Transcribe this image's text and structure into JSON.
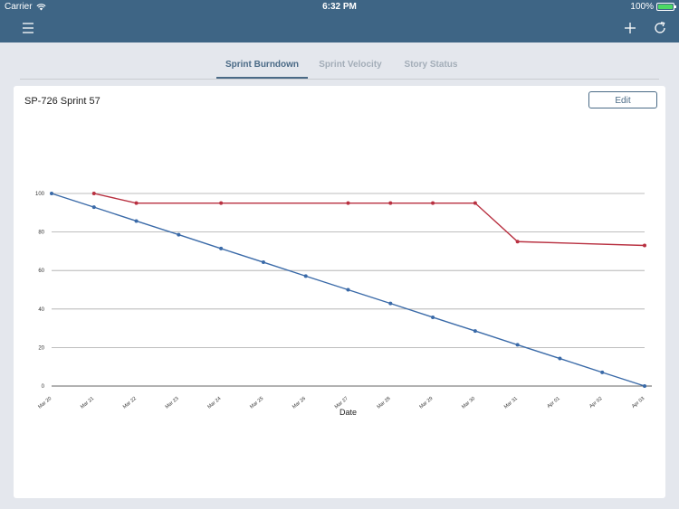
{
  "status_bar": {
    "carrier": "Carrier",
    "time": "6:32 PM",
    "battery": "100%"
  },
  "nav": {
    "menu_icon": "hamburger-menu-icon",
    "add_icon": "plus-icon",
    "refresh_icon": "refresh-icon"
  },
  "tabs": [
    {
      "label": "Sprint Burndown",
      "active": true
    },
    {
      "label": "Sprint Velocity",
      "active": false
    },
    {
      "label": "Story Status",
      "active": false
    }
  ],
  "card": {
    "title": "SP-726 Sprint 57",
    "edit_label": "Edit"
  },
  "colors": {
    "header": "#3e6585",
    "ideal_line": "#3a6aa8",
    "actual_line": "#b83040"
  },
  "chart_data": {
    "type": "line",
    "categories": [
      "Mar 20",
      "Mar 21",
      "Mar 22",
      "Mar 23",
      "Mar 24",
      "Mar 25",
      "Mar 26",
      "Mar 27",
      "Mar 28",
      "Mar 29",
      "Mar 30",
      "Mar 31",
      "Apr 01",
      "Apr 02",
      "Apr 03"
    ],
    "xlabel": "Date",
    "ylabel": "",
    "ylim": [
      0,
      100
    ],
    "yticks": [
      0,
      20,
      40,
      60,
      80,
      100
    ],
    "grid": true,
    "series": [
      {
        "values": [
          100,
          92.9,
          85.7,
          78.6,
          71.4,
          64.3,
          57.1,
          50,
          42.9,
          35.7,
          28.6,
          21.4,
          14.3,
          7.1,
          0
        ]
      },
      {
        "values": [
          null,
          100,
          95,
          null,
          95,
          null,
          null,
          95,
          95,
          95,
          95,
          75,
          null,
          null,
          73
        ]
      }
    ]
  }
}
